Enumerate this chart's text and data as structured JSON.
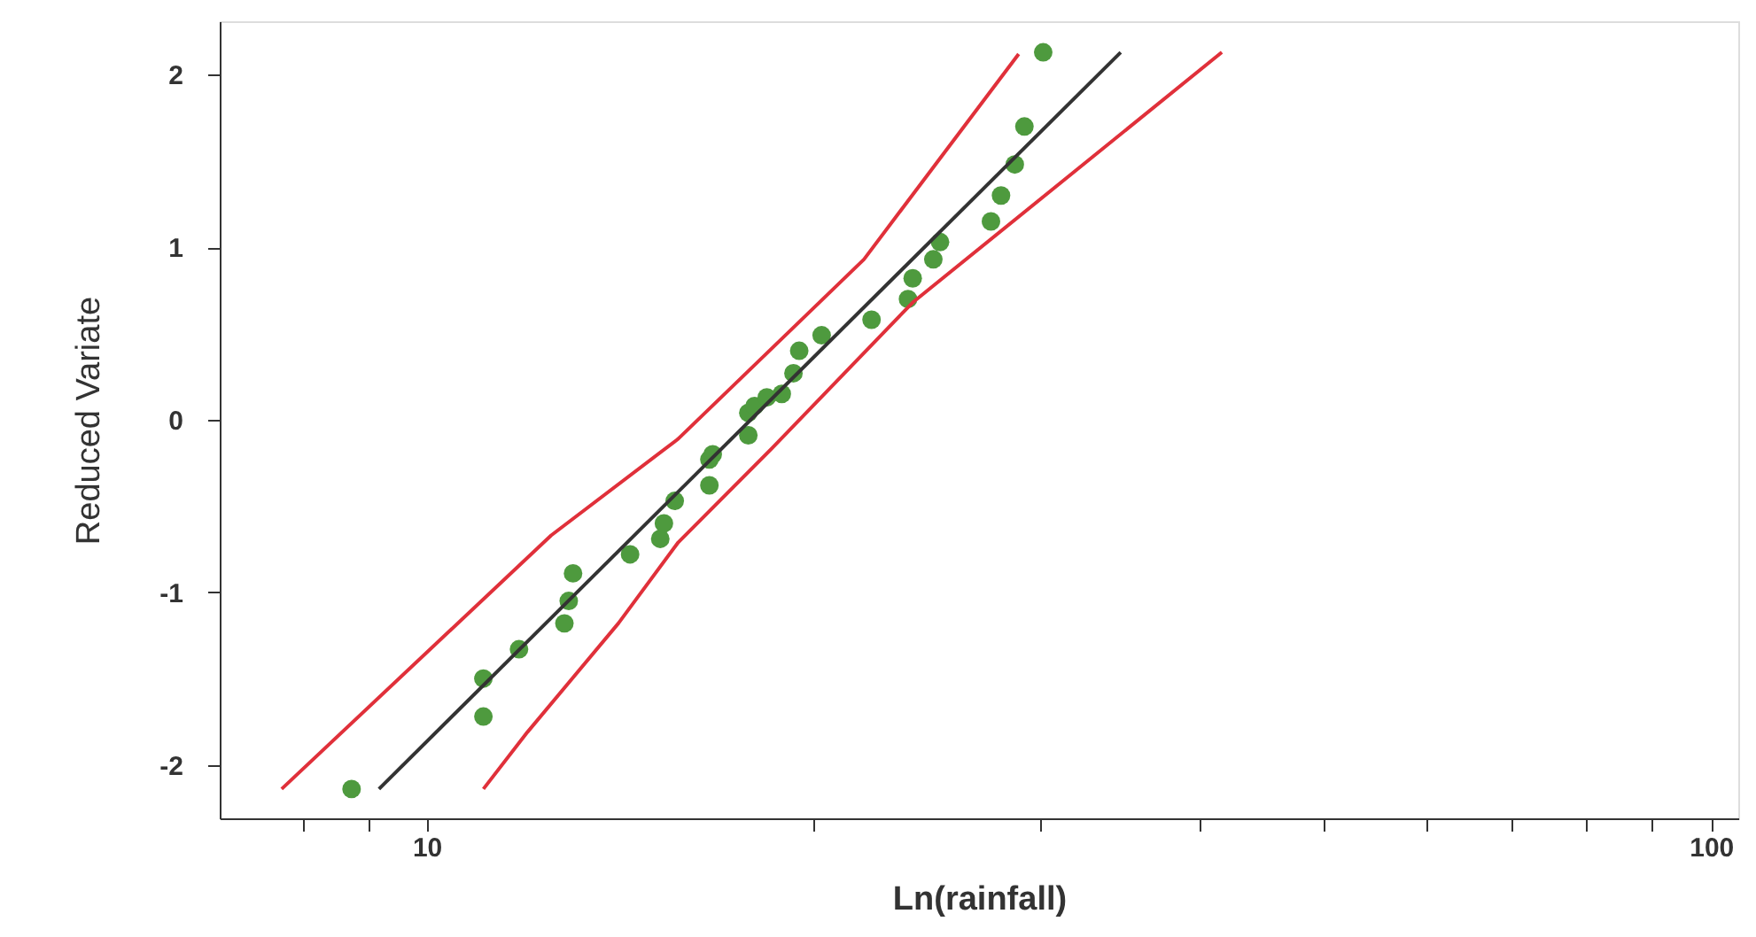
{
  "chart_data": {
    "type": "scatter",
    "xlabel": "Ln(rainfall)",
    "ylabel": "Reduced Variate",
    "log": "x",
    "grid": false,
    "xlim": [
      6.9,
      105
    ],
    "ylim": [
      -2.31,
      2.31
    ],
    "xticks": [
      {
        "value": 8,
        "label": null
      },
      {
        "value": 9,
        "label": null
      },
      10,
      {
        "value": 20,
        "label": null
      },
      {
        "value": 30,
        "label": null
      },
      {
        "value": 40,
        "label": null
      },
      {
        "value": 50,
        "label": null
      },
      {
        "value": 60,
        "label": null
      },
      {
        "value": 70,
        "label": null
      },
      {
        "value": 80,
        "label": null
      },
      {
        "value": 90,
        "label": null
      },
      100
    ],
    "yticks": [
      -2,
      -1,
      0,
      1,
      2
    ],
    "series": [
      {
        "marker": "circle",
        "color": "#4e9a3e",
        "x": [
          8.74,
          11.07,
          11.07,
          11.8,
          12.8,
          12.9,
          13.0,
          14.4,
          15.2,
          15.3,
          15.6,
          16.6,
          16.6,
          16.7,
          17.8,
          17.8,
          18.0,
          18.4,
          18.9,
          19.3,
          19.5,
          20.3,
          22.2,
          23.7,
          23.9,
          24.8,
          25.1,
          27.5,
          28.0,
          28.7,
          29.2,
          30.2
        ],
        "values": [
          -2.14,
          -1.72,
          -1.5,
          -1.33,
          -1.18,
          -1.05,
          -0.89,
          -0.78,
          -0.69,
          -0.6,
          -0.47,
          -0.38,
          -0.23,
          -0.2,
          -0.09,
          0.04,
          0.08,
          0.13,
          0.15,
          0.27,
          0.4,
          0.49,
          0.58,
          0.7,
          0.82,
          0.93,
          1.03,
          1.15,
          1.3,
          1.48,
          1.7,
          2.13
        ]
      },
      {
        "type": "line",
        "color": "#333333",
        "x": [
          9.18,
          34.7
        ],
        "values": [
          -2.14,
          2.13
        ]
      },
      {
        "type": "line",
        "color": "#e0303a",
        "x": [
          7.71,
          12.5,
          15.7,
          21.9,
          28.9
        ],
        "values": [
          -2.14,
          -0.67,
          -0.11,
          0.93,
          2.12
        ]
      },
      {
        "type": "line",
        "color": "#e0303a",
        "x": [
          11.07,
          11.98,
          14.1,
          15.7,
          18.6,
          23.9,
          41.6
        ],
        "values": [
          -2.14,
          -1.81,
          -1.18,
          -0.71,
          -0.16,
          0.68,
          2.13
        ]
      }
    ]
  }
}
